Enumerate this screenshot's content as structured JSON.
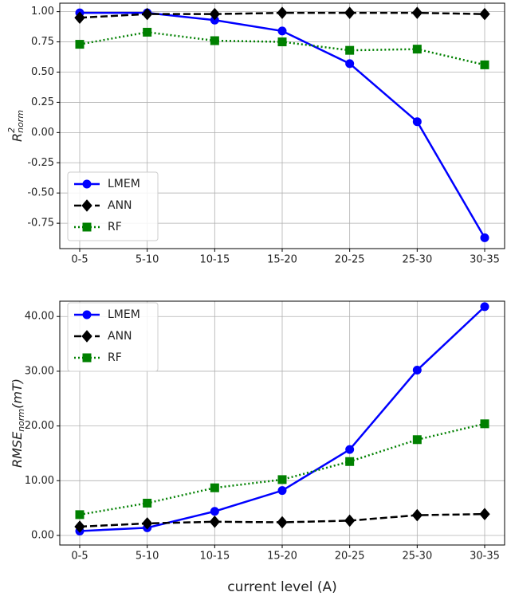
{
  "chart_data": [
    {
      "type": "line",
      "y_label": {
        "text": "R",
        "sup": "2",
        "sub": "norm"
      },
      "categories": [
        "0-5",
        "5-10",
        "10-15",
        "15-20",
        "20-25",
        "25-30",
        "30-35"
      ],
      "ylim": [
        -0.96,
        1.07
      ],
      "yticks": [
        {
          "value": 1,
          "label": "1.00"
        },
        {
          "value": 0.75,
          "label": "0.75"
        },
        {
          "value": 0.5,
          "label": "0.50"
        },
        {
          "value": 0.25,
          "label": "0.25"
        },
        {
          "value": 0,
          "label": "0.00"
        },
        {
          "value": -0.25,
          "label": "-0.25"
        },
        {
          "value": -0.5,
          "label": "-0.50"
        },
        {
          "value": -0.75,
          "label": "-0.75"
        }
      ],
      "grid": true,
      "legend": "lower left",
      "series": [
        {
          "name": "LMEM",
          "color": "#0000ff",
          "marker": "circle",
          "linestyle": "solid",
          "values": [
            0.99,
            0.99,
            0.93,
            0.84,
            0.57,
            0.09,
            -0.87
          ]
        },
        {
          "name": "ANN",
          "color": "#000000",
          "marker": "diamond",
          "linestyle": "dashed",
          "values": [
            0.95,
            0.98,
            0.98,
            0.99,
            0.99,
            0.99,
            0.98
          ]
        },
        {
          "name": "RF",
          "color": "#008000",
          "marker": "square",
          "linestyle": "dotted",
          "values": [
            0.73,
            0.83,
            0.76,
            0.75,
            0.68,
            0.69,
            0.56
          ]
        }
      ]
    },
    {
      "type": "line",
      "y_label": {
        "text": "RMSE",
        "sub": "norm",
        "after": "(mT)"
      },
      "x_label": "current level (A)",
      "categories": [
        "0-5",
        "5-10",
        "10-15",
        "15-20",
        "20-25",
        "25-30",
        "30-35"
      ],
      "ylim": [
        -1.75,
        42.8
      ],
      "yticks": [
        {
          "value": 0,
          "label": "0.00"
        },
        {
          "value": 10,
          "label": "10.00"
        },
        {
          "value": 20,
          "label": "20.00"
        },
        {
          "value": 30,
          "label": "30.00"
        },
        {
          "value": 40,
          "label": "40.00"
        }
      ],
      "grid": true,
      "legend": "upper left",
      "series": [
        {
          "name": "LMEM",
          "color": "#0000ff",
          "marker": "circle",
          "linestyle": "solid",
          "values": [
            0.8,
            1.4,
            4.4,
            8.2,
            15.7,
            30.2,
            41.8
          ]
        },
        {
          "name": "ANN",
          "color": "#000000",
          "marker": "diamond",
          "linestyle": "dashed",
          "values": [
            1.6,
            2.2,
            2.5,
            2.4,
            2.7,
            3.7,
            3.9
          ]
        },
        {
          "name": "RF",
          "color": "#008000",
          "marker": "square",
          "linestyle": "dotted",
          "values": [
            3.8,
            5.9,
            8.7,
            10.2,
            13.5,
            17.5,
            20.4
          ]
        }
      ]
    }
  ]
}
